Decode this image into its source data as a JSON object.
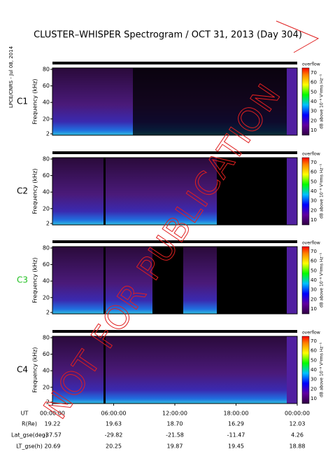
{
  "title": "CLUSTER–WHISPER Spectrogram / OCT 31, 2013 (Day 304)",
  "side_label": "LPCE/CNRS - Jul 08, 2014",
  "panels": [
    {
      "label": "C1"
    },
    {
      "label": "C2"
    },
    {
      "label": "C3"
    },
    {
      "label": "C4"
    }
  ],
  "y_axis": {
    "label": "Frequency (kHz)",
    "ticks": [
      2,
      20,
      40,
      60,
      80
    ]
  },
  "colorbar": {
    "top_label": "overflow",
    "label": "dB above 10⁻⁸ V²rms Hz⁻¹",
    "ticks": [
      10,
      20,
      30,
      40,
      50,
      60,
      70
    ]
  },
  "x_axis": {
    "ticks": [
      "00:00:00",
      "06:00:00",
      "12:00:00",
      "18:00:00",
      "00:00:00"
    ]
  },
  "ephemeris": {
    "rows": [
      {
        "label": "R(Re)",
        "values": [
          "19.22",
          "19.63",
          "18.70",
          "16.29",
          "12.03"
        ]
      },
      {
        "label": "Lat_gse(deg)",
        "values": [
          "-37.57",
          "-29.82",
          "-21.58",
          "-11.47",
          "4.26"
        ]
      },
      {
        "label": "LT_gse(h)",
        "values": [
          "20.69",
          "20.25",
          "19.87",
          "19.45",
          "18.88"
        ]
      }
    ],
    "ut_label": "UT"
  },
  "watermark": "NOT FOR PUBLICATION"
}
